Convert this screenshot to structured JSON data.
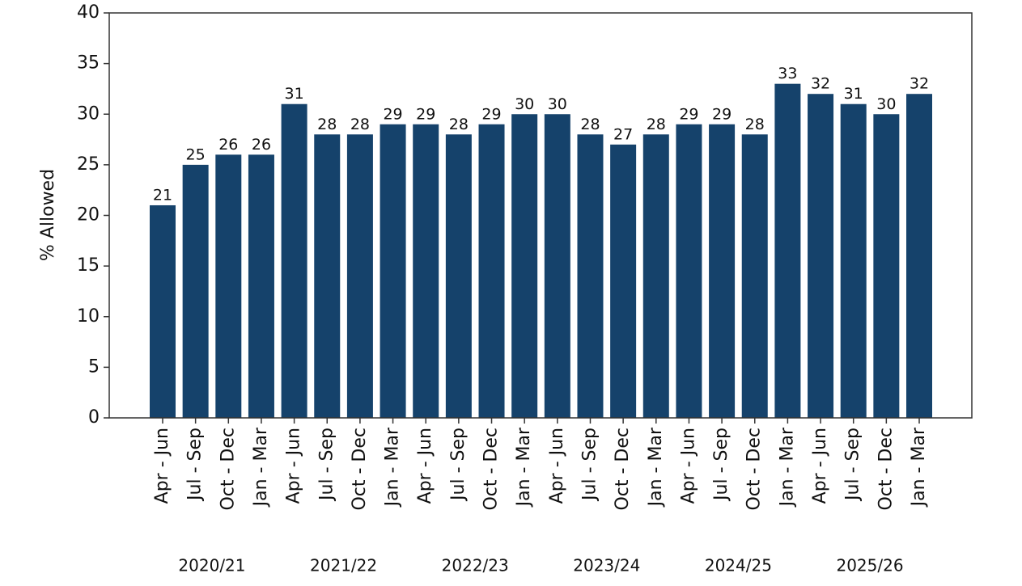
{
  "chart_data": {
    "type": "bar",
    "y_label": "% Allowed",
    "categories": [
      "Apr - Jun",
      "Jul - Sep",
      "Oct - Dec",
      "Jan - Mar",
      "Apr - Jun",
      "Jul - Sep",
      "Oct - Dec",
      "Jan - Mar",
      "Apr - Jun",
      "Jul - Sep",
      "Oct - Dec",
      "Jan - Mar",
      "Apr - Jun",
      "Jul - Sep",
      "Oct - Dec",
      "Jan - Mar",
      "Apr - Jun",
      "Jul - Sep",
      "Oct - Dec",
      "Jan - Mar",
      "Apr - Jun",
      "Jul - Sep",
      "Oct - Dec",
      "Jan - Mar"
    ],
    "groups": [
      "2020/21",
      "2021/22",
      "2022/23",
      "2023/24",
      "2024/25",
      "2025/26"
    ],
    "values": [
      21,
      25,
      26,
      26,
      31,
      28,
      28,
      29,
      29,
      28,
      29,
      30,
      30,
      28,
      27,
      28,
      29,
      29,
      28,
      33,
      32,
      31,
      30,
      32
    ],
    "color": "#15426b",
    "ylim": [
      0,
      40
    ],
    "yticks": [
      0,
      5,
      10,
      15,
      20,
      25,
      30,
      35,
      40
    ]
  }
}
